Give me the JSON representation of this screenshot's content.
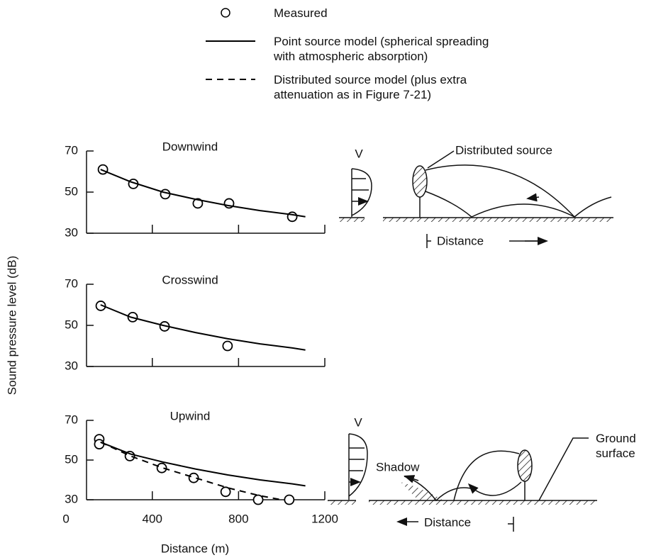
{
  "chart_data": [
    {
      "type": "line",
      "title": "Downwind",
      "xlim": [
        95,
        1200
      ],
      "ylim": [
        30,
        70
      ],
      "yticks": [
        30,
        50,
        70
      ],
      "series": [
        {
          "name": "Measured",
          "style": "marker",
          "color": "#000000",
          "x": [
            171,
            312,
            460,
            611,
            756,
            1049
          ],
          "values": [
            61,
            54,
            49,
            44.5,
            44.5,
            38
          ]
        },
        {
          "name": "Point source model (spherical spreading with atmospheric absorption)",
          "style": "solid",
          "color": "#000000",
          "x": [
            160,
            300,
            450,
            600,
            750,
            900,
            1050,
            1110
          ],
          "values": [
            61,
            55,
            50,
            46.5,
            43.5,
            41,
            39,
            38
          ]
        }
      ]
    },
    {
      "type": "line",
      "title": "Crosswind",
      "y_label": "Sound pressure level (dB)",
      "xlim": [
        95,
        1200
      ],
      "ylim": [
        30,
        70
      ],
      "yticks": [
        30,
        50,
        70
      ],
      "series": [
        {
          "name": "Measured",
          "style": "marker",
          "color": "#000000",
          "x": [
            161,
            309,
            457,
            749
          ],
          "values": [
            59.5,
            54,
            49.5,
            40
          ]
        },
        {
          "name": "Point source model (spherical spreading with atmospheric absorption)",
          "style": "solid",
          "color": "#000000",
          "x": [
            160,
            300,
            450,
            600,
            750,
            900,
            1050,
            1110
          ],
          "values": [
            60,
            54,
            50,
            46.5,
            43.5,
            41,
            39,
            38
          ]
        }
      ]
    },
    {
      "type": "line",
      "title": "Upwind",
      "x_label": "Distance (m)",
      "xlim": [
        95,
        1200
      ],
      "ylim": [
        30,
        70
      ],
      "xticks": [
        0,
        400,
        800,
        1200
      ],
      "yticks": [
        30,
        50,
        70
      ],
      "series": [
        {
          "name": "Measured",
          "style": "marker",
          "color": "#000000",
          "x": [
            154,
            154,
            296,
            444,
            592,
            740,
            891,
            1035
          ],
          "values": [
            60.5,
            58,
            52,
            46,
            41,
            34,
            30,
            30
          ]
        },
        {
          "name": "Point source model (spherical spreading with atmospheric absorption)",
          "style": "solid",
          "color": "#000000",
          "x": [
            160,
            300,
            450,
            600,
            750,
            900,
            1050,
            1110
          ],
          "values": [
            59,
            53,
            49,
            45.5,
            42.5,
            40,
            38,
            37
          ]
        },
        {
          "name": "Distributed source model (plus extra attenuation as in Figure 7-21)",
          "style": "dashed",
          "color": "#000000",
          "x": [
            160,
            300,
            450,
            600,
            750,
            900,
            1000
          ],
          "values": [
            59,
            52,
            46,
            41,
            36,
            32,
            30
          ]
        }
      ]
    }
  ],
  "diagrams": {
    "downwind": {
      "profile_label": "V",
      "source_label": "Distributed source",
      "distance_label": "Distance"
    },
    "upwind": {
      "profile_label": "V",
      "shadow_label": "Shadow",
      "ground_label": "Ground surface",
      "distance_label": "Distance"
    }
  }
}
